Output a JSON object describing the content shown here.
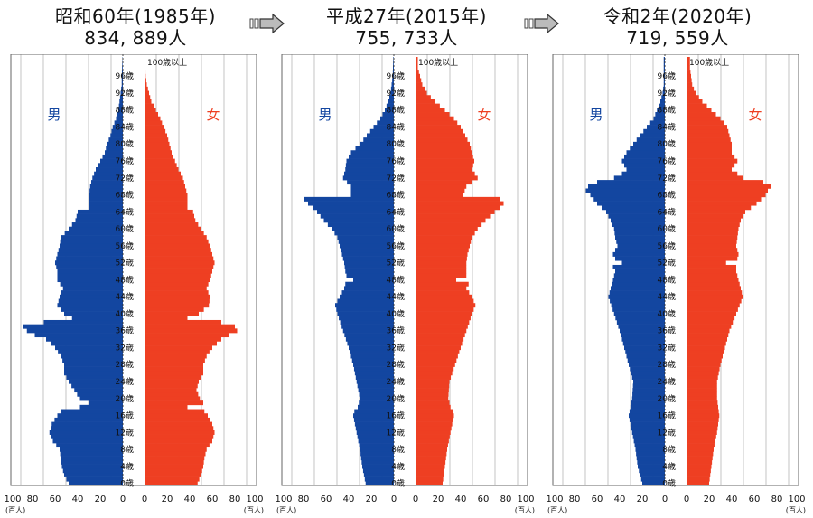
{
  "panels": [
    {
      "title": "昭和60年(1985年)",
      "total": "834, 889人",
      "chart_data": {
        "type": "bar",
        "orientation": "horizontal",
        "xlim": [
          -100,
          100
        ],
        "x_unit": "(百人)",
        "ages": {
          "min": 0,
          "max": 100,
          "top_label": "100歳以上"
        },
        "anchors": [
          [
            0,
            48,
            47
          ],
          [
            2,
            52,
            50
          ],
          [
            4,
            54,
            52
          ],
          [
            6,
            55,
            53
          ],
          [
            8,
            56,
            55
          ],
          [
            10,
            62,
            60
          ],
          [
            12,
            65,
            62
          ],
          [
            14,
            63,
            60
          ],
          [
            16,
            58,
            56
          ],
          [
            17,
            55,
            53
          ],
          [
            18,
            38,
            38
          ],
          [
            19,
            30,
            52
          ],
          [
            20,
            38,
            49
          ],
          [
            22,
            43,
            46
          ],
          [
            24,
            48,
            48
          ],
          [
            26,
            52,
            52
          ],
          [
            28,
            52,
            52
          ],
          [
            30,
            55,
            55
          ],
          [
            32,
            60,
            60
          ],
          [
            34,
            68,
            68
          ],
          [
            35,
            78,
            75
          ],
          [
            36,
            85,
            82
          ],
          [
            37,
            88,
            80
          ],
          [
            38,
            70,
            68
          ],
          [
            39,
            45,
            38
          ],
          [
            40,
            52,
            48
          ],
          [
            42,
            58,
            57
          ],
          [
            44,
            56,
            58
          ],
          [
            46,
            53,
            55
          ],
          [
            48,
            58,
            58
          ],
          [
            50,
            58,
            60
          ],
          [
            52,
            60,
            62
          ],
          [
            54,
            58,
            60
          ],
          [
            56,
            56,
            58
          ],
          [
            58,
            55,
            55
          ],
          [
            60,
            48,
            50
          ],
          [
            62,
            42,
            45
          ],
          [
            64,
            40,
            43
          ],
          [
            65,
            30,
            38
          ],
          [
            66,
            30,
            38
          ],
          [
            68,
            30,
            38
          ],
          [
            70,
            29,
            36
          ],
          [
            72,
            27,
            34
          ],
          [
            74,
            24,
            30
          ],
          [
            76,
            20,
            27
          ],
          [
            78,
            16,
            24
          ],
          [
            80,
            14,
            22
          ],
          [
            82,
            11,
            20
          ],
          [
            84,
            9,
            17
          ],
          [
            86,
            6,
            14
          ],
          [
            88,
            4,
            10
          ],
          [
            90,
            3,
            6
          ],
          [
            92,
            2,
            4
          ],
          [
            94,
            1,
            2
          ],
          [
            96,
            1,
            1
          ],
          [
            99,
            0.5,
            0.5
          ],
          [
            100,
            0.3,
            0.3
          ]
        ],
        "series": [
          {
            "name": "男",
            "color": "#1346a0"
          },
          {
            "name": "女",
            "color": "#ee3f22"
          }
        ]
      }
    },
    {
      "title": "平成27年(2015年)",
      "total": "755, 733人",
      "chart_data": {
        "type": "bar",
        "orientation": "horizontal",
        "xlim": [
          -100,
          100
        ],
        "x_unit": "(百人)",
        "ages": {
          "min": 0,
          "max": 100,
          "top_label": "100歳以上"
        },
        "anchors": [
          [
            0,
            25,
            24
          ],
          [
            4,
            28,
            26
          ],
          [
            8,
            30,
            28
          ],
          [
            12,
            33,
            31
          ],
          [
            16,
            36,
            34
          ],
          [
            17,
            35,
            33
          ],
          [
            18,
            32,
            31
          ],
          [
            20,
            30,
            29
          ],
          [
            24,
            33,
            30
          ],
          [
            28,
            36,
            35
          ],
          [
            32,
            40,
            40
          ],
          [
            36,
            45,
            45
          ],
          [
            40,
            50,
            50
          ],
          [
            42,
            52,
            53
          ],
          [
            44,
            48,
            50
          ],
          [
            46,
            44,
            45
          ],
          [
            47,
            43,
            47
          ],
          [
            48,
            36,
            36
          ],
          [
            49,
            42,
            45
          ],
          [
            50,
            43,
            45
          ],
          [
            52,
            44,
            45
          ],
          [
            54,
            46,
            46
          ],
          [
            56,
            48,
            48
          ],
          [
            58,
            50,
            50
          ],
          [
            60,
            55,
            55
          ],
          [
            62,
            62,
            62
          ],
          [
            64,
            68,
            70
          ],
          [
            65,
            72,
            75
          ],
          [
            66,
            76,
            78
          ],
          [
            67,
            80,
            75
          ],
          [
            68,
            38,
            42
          ],
          [
            70,
            38,
            45
          ],
          [
            72,
            45,
            55
          ],
          [
            74,
            43,
            50
          ],
          [
            76,
            42,
            52
          ],
          [
            78,
            38,
            50
          ],
          [
            80,
            30,
            48
          ],
          [
            82,
            24,
            44
          ],
          [
            84,
            18,
            40
          ],
          [
            86,
            12,
            34
          ],
          [
            88,
            8,
            26
          ],
          [
            90,
            5,
            17
          ],
          [
            92,
            3,
            10
          ],
          [
            94,
            2,
            6
          ],
          [
            96,
            1,
            4
          ],
          [
            98,
            0.8,
            2
          ],
          [
            100,
            0.5,
            2
          ]
        ],
        "series": [
          {
            "name": "男",
            "color": "#1346a0"
          },
          {
            "name": "女",
            "color": "#ee3f22"
          }
        ]
      }
    },
    {
      "title": "令和2年(2020年)",
      "total": "719, 559人",
      "chart_data": {
        "type": "bar",
        "orientation": "horizontal",
        "xlim": [
          -100,
          100
        ],
        "x_unit": "(百人)",
        "ages": {
          "min": 0,
          "max": 100,
          "top_label": "100歳以上"
        },
        "anchors": [
          [
            0,
            20,
            20
          ],
          [
            4,
            24,
            22
          ],
          [
            8,
            26,
            24
          ],
          [
            12,
            29,
            27
          ],
          [
            16,
            32,
            29
          ],
          [
            20,
            29,
            27
          ],
          [
            24,
            28,
            27
          ],
          [
            28,
            32,
            30
          ],
          [
            32,
            36,
            34
          ],
          [
            36,
            40,
            38
          ],
          [
            40,
            45,
            44
          ],
          [
            44,
            50,
            50
          ],
          [
            46,
            48,
            48
          ],
          [
            48,
            46,
            46
          ],
          [
            50,
            44,
            44
          ],
          [
            51,
            46,
            44
          ],
          [
            52,
            38,
            35
          ],
          [
            53,
            44,
            45
          ],
          [
            54,
            46,
            46
          ],
          [
            56,
            42,
            44
          ],
          [
            58,
            44,
            45
          ],
          [
            60,
            45,
            46
          ],
          [
            62,
            48,
            48
          ],
          [
            64,
            52,
            52
          ],
          [
            66,
            60,
            62
          ],
          [
            68,
            66,
            70
          ],
          [
            69,
            70,
            72
          ],
          [
            70,
            68,
            75
          ],
          [
            71,
            60,
            68
          ],
          [
            72,
            45,
            50
          ],
          [
            73,
            38,
            45
          ],
          [
            74,
            34,
            40
          ],
          [
            76,
            38,
            45
          ],
          [
            78,
            34,
            40
          ],
          [
            80,
            28,
            40
          ],
          [
            82,
            22,
            38
          ],
          [
            84,
            16,
            36
          ],
          [
            86,
            10,
            30
          ],
          [
            88,
            7,
            22
          ],
          [
            90,
            4,
            14
          ],
          [
            92,
            2,
            8
          ],
          [
            94,
            1,
            5
          ],
          [
            96,
            1,
            4
          ],
          [
            98,
            1,
            3
          ],
          [
            100,
            1,
            3
          ]
        ],
        "series": [
          {
            "name": "男",
            "color": "#1346a0"
          },
          {
            "name": "女",
            "color": "#ee3f22"
          }
        ]
      }
    }
  ],
  "axis": {
    "x_ticks": [
      "100",
      "80",
      "60",
      "40",
      "20",
      "0",
      "20",
      "40",
      "60",
      "80",
      "100"
    ],
    "unit_label": "(百人)"
  },
  "age_labels": [
    "0歳",
    "4歳",
    "8歳",
    "12歳",
    "16歳",
    "20歳",
    "24歳",
    "28歳",
    "32歳",
    "36歳",
    "40歳",
    "44歳",
    "48歳",
    "52歳",
    "56歳",
    "60歳",
    "64歳",
    "68歳",
    "72歳",
    "76歳",
    "80歳",
    "84歳",
    "88歳",
    "92歳",
    "96歳"
  ],
  "sex_labels": {
    "male": "男",
    "female": "女"
  },
  "arrows": [
    {
      "icon": "arrow-right-icon"
    },
    {
      "icon": "arrow-right-icon"
    }
  ]
}
